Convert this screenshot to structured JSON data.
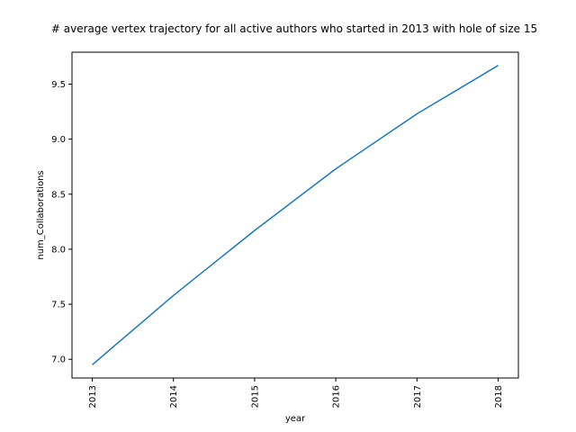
{
  "chart_data": {
    "type": "line",
    "title": "# average vertex trajectory for all active authors who started in 2013 with hole of size 15",
    "xlabel": "year",
    "ylabel": "num_Collaborations",
    "x": [
      "2013",
      "2014",
      "2015",
      "2016",
      "2017",
      "2018"
    ],
    "series": [
      {
        "values": [
          6.95,
          7.58,
          8.17,
          8.73,
          9.23,
          9.67
        ],
        "color": "#1f77b4"
      }
    ],
    "ylim": [
      6.83,
      9.79
    ],
    "yticks": [
      "7.0",
      "7.5",
      "8.0",
      "8.5",
      "9.0",
      "9.5"
    ],
    "grid": false,
    "legend": "none"
  }
}
